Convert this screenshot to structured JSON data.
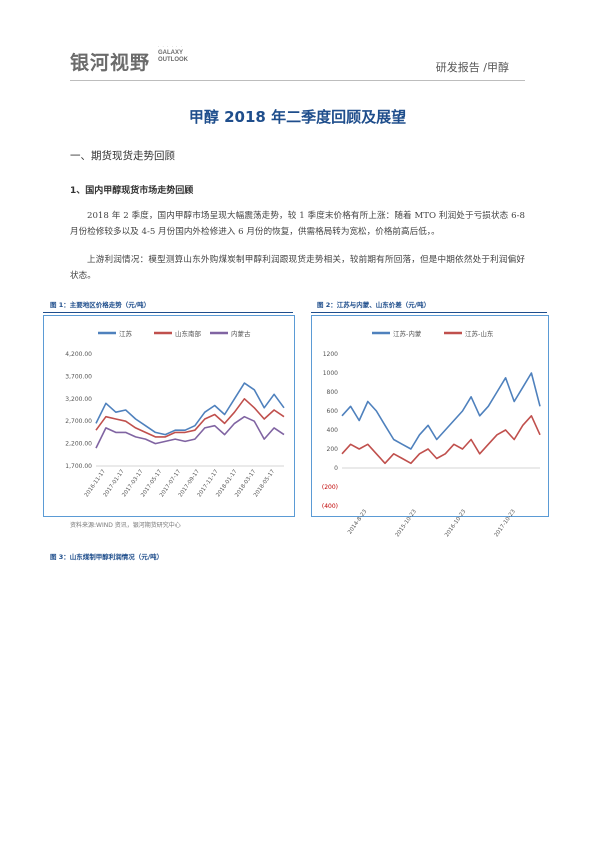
{
  "header": {
    "logo_cn": "银河视野",
    "logo_en_1": "GALAXY",
    "logo_en_2": "OUTLOOK",
    "right": "研发报告 /甲醇"
  },
  "title": "甲醇 2018 年二季度回顾及展望",
  "section1": "一、期货现货走势回顾",
  "section1_1": "1、国内甲醇现货市场走势回顾",
  "paragraphs": [
    "2018 年 2 季度，国内甲醇市场呈现大幅震荡走势，较 1 季度末价格有所上涨：随着 MTO 利润处于亏损状态 6-8 月份检修较多以及 4-5 月份国内外检修进入 6 月份的恢复，供需格局转为宽松，价格前高后低，。",
    "上游利润情况：模型测算山东外购煤炭制甲醇利润跟现货走势相关，较前期有所回落，但是中期依然处于利润偏好状态。"
  ],
  "figures": {
    "fig1_caption": "图 1：主要地区价格走势（元/吨）",
    "fig2_caption": "图 2：江苏与内蒙、山东价差（元/吨）",
    "fig3_caption": "图 3：山东煤制甲醇利润情况（元/吨）",
    "source": "资料来源:WIND 资讯，银河期货研究中心"
  },
  "chart_data": [
    {
      "type": "line",
      "title": "",
      "legend_position": "top",
      "y_ticks": [
        "1,700.00",
        "2,200.00",
        "2,700.00",
        "3,200.00",
        "3,700.00",
        "4,200.00"
      ],
      "ylim": [
        1700,
        4200
      ],
      "x_ticks": [
        "2016-11-17",
        "2017-01-17",
        "2017-03-17",
        "2017-05-17",
        "2017-07-17",
        "2017-09-17",
        "2017-11-17",
        "2018-01-17",
        "2018-03-17",
        "2018-05-17"
      ],
      "x_count": 20,
      "series": [
        {
          "name": "江苏",
          "color": "#4f81bd",
          "values": [
            2650,
            3100,
            2900,
            2950,
            2750,
            2600,
            2450,
            2400,
            2500,
            2500,
            2600,
            2900,
            3050,
            2850,
            3200,
            3550,
            3400,
            3000,
            3300,
            3000
          ]
        },
        {
          "name": "山东南部",
          "color": "#c0504d",
          "values": [
            2500,
            2800,
            2750,
            2700,
            2550,
            2450,
            2350,
            2350,
            2450,
            2450,
            2500,
            2750,
            2850,
            2650,
            2900,
            3200,
            3000,
            2750,
            2950,
            2800
          ]
        },
        {
          "name": "内蒙古",
          "color": "#8064a2",
          "values": [
            2100,
            2550,
            2450,
            2450,
            2350,
            2300,
            2200,
            2250,
            2300,
            2250,
            2300,
            2550,
            2600,
            2400,
            2650,
            2800,
            2700,
            2300,
            2550,
            2400
          ]
        }
      ]
    },
    {
      "type": "line",
      "title": "",
      "legend_position": "top",
      "y_ticks": [
        "(400)",
        "(200)",
        "0",
        "200",
        "400",
        "600",
        "800",
        "1000",
        "1200"
      ],
      "ylim": [
        -400,
        1200
      ],
      "x_ticks": [
        "2014-8-23",
        "2015-10-23",
        "2016-10-23",
        "2017-10-23"
      ],
      "x_count": 24,
      "series": [
        {
          "name": "江苏-内蒙",
          "color": "#4f81bd",
          "values": [
            550,
            650,
            500,
            700,
            600,
            450,
            300,
            250,
            200,
            350,
            450,
            300,
            400,
            500,
            600,
            750,
            550,
            650,
            800,
            950,
            700,
            850,
            1000,
            650
          ]
        },
        {
          "name": "江苏-山东",
          "color": "#c0504d",
          "values": [
            150,
            250,
            200,
            250,
            150,
            50,
            150,
            100,
            50,
            150,
            200,
            100,
            150,
            250,
            200,
            300,
            150,
            250,
            350,
            400,
            300,
            450,
            550,
            350
          ]
        }
      ]
    }
  ]
}
